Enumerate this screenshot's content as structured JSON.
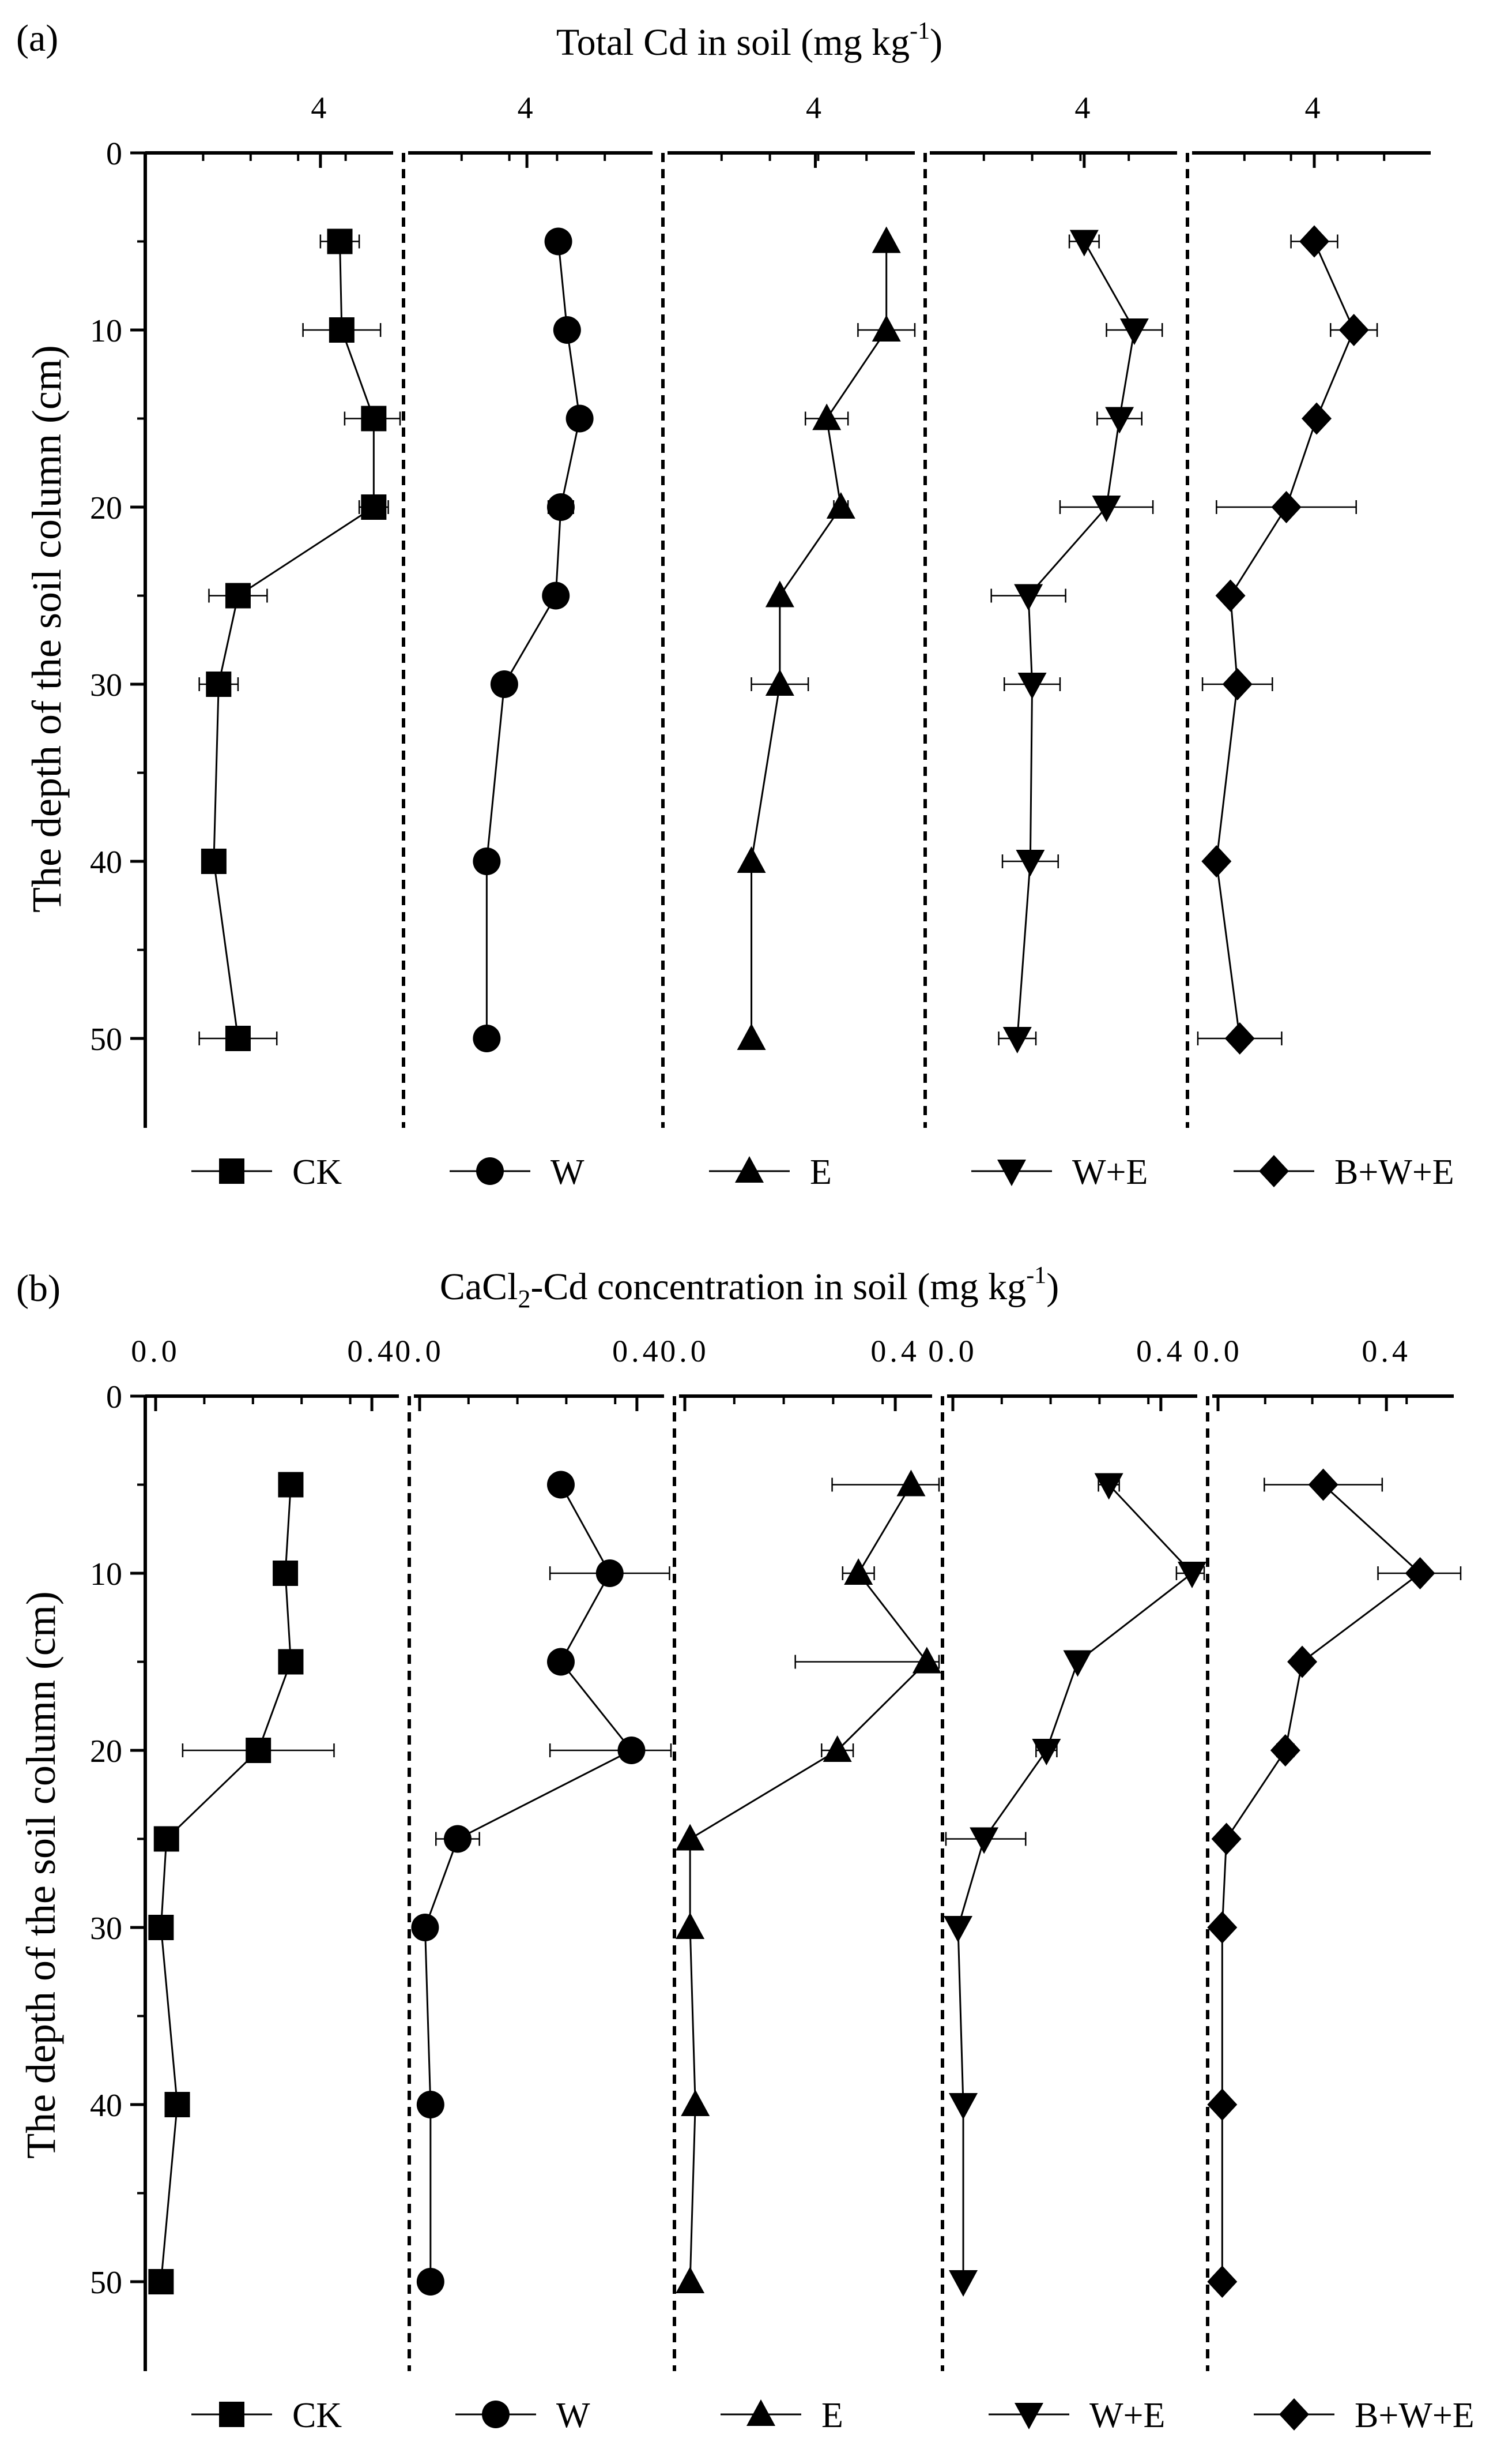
{
  "panel_a": {
    "label": "(a)",
    "title_main": "Total Cd in soil (mg kg",
    "title_sup": "-1",
    "title_end": ")",
    "ylabel": "The depth of the soil column (cm)"
  },
  "panel_b": {
    "label": "(b)",
    "title_pre": "CaCl",
    "title_sub": "2",
    "title_mid": "-Cd concentration in soil (mg kg",
    "title_sup": "-1",
    "title_end": ")",
    "ylabel": "The depth of the soil column (cm)"
  },
  "depth_ticks": [
    "0",
    "10",
    "20",
    "30",
    "40",
    "50"
  ],
  "colors": {
    "line": "#000000",
    "marker": "#000000",
    "background": "#ffffff"
  },
  "chart_data": [
    {
      "type": "line",
      "panel": "a",
      "title": "Total Cd in soil (mg kg-1)",
      "xlabel": "Total Cd in soil (mg kg-1)",
      "ylabel": "The depth of the soil column (cm)",
      "ylim": [
        55,
        0
      ],
      "y_ticks": [
        0,
        10,
        20,
        30,
        40,
        50
      ],
      "depths": [
        5,
        10,
        15,
        20,
        25,
        30,
        40,
        50
      ],
      "series": [
        {
          "name": "CK",
          "marker": "square",
          "x_tick_labels": [
            "4"
          ],
          "xlim": [
            2.3,
            4.75
          ],
          "values": [
            4.2,
            4.22,
            4.55,
            4.55,
            3.15,
            2.95,
            2.9,
            3.15
          ],
          "errors": [
            0.2,
            0.4,
            0.3,
            0.15,
            0.3,
            0.2,
            0,
            0.4
          ]
        },
        {
          "name": "W",
          "marker": "circle",
          "x_tick_labels": [
            "4"
          ],
          "xlim": [
            3.1,
            5.0
          ],
          "values": [
            4.25,
            4.32,
            4.42,
            4.27,
            4.23,
            3.82,
            3.68,
            3.68
          ],
          "errors": [
            0.03,
            0.06,
            0.08,
            0.1,
            0,
            0.05,
            0,
            0
          ]
        },
        {
          "name": "E",
          "marker": "triangle-up",
          "x_tick_labels": [
            "4"
          ],
          "xlim": [
            3.0,
            4.7
          ],
          "values": [
            4.5,
            4.5,
            4.08,
            4.18,
            3.75,
            3.75,
            3.55,
            3.55
          ],
          "errors": [
            0,
            0.2,
            0.15,
            0.05,
            0,
            0.2,
            0,
            0
          ]
        },
        {
          "name": "W+E",
          "marker": "triangle-down",
          "x_tick_labels": [
            "4"
          ],
          "xlim": [
            3.2,
            4.5
          ],
          "values": [
            4.0,
            4.27,
            4.19,
            4.12,
            3.7,
            3.72,
            3.71,
            3.64
          ],
          "errors": [
            0.08,
            0.15,
            0.12,
            0.25,
            0.2,
            0.15,
            0.15,
            0.1
          ]
        },
        {
          "name": "B+W+E",
          "marker": "diamond",
          "x_tick_labels": [
            "4"
          ],
          "xlim": [
            3.5,
            4.5
          ],
          "values": [
            4.0,
            4.17,
            4.01,
            3.88,
            3.64,
            3.67,
            3.58,
            3.68
          ],
          "errors": [
            0.1,
            0.1,
            0,
            0.3,
            0,
            0.15,
            0,
            0.18
          ]
        }
      ]
    },
    {
      "type": "line",
      "panel": "b",
      "title": "CaCl2-Cd concentration in soil (mg kg-1)",
      "xlabel": "CaCl2-Cd concentration in soil (mg kg-1)",
      "ylabel": "The depth of the soil column (cm)",
      "ylim": [
        55,
        0
      ],
      "y_ticks": [
        0,
        10,
        20,
        30,
        40,
        50
      ],
      "depths": [
        5,
        10,
        15,
        20,
        25,
        30,
        40,
        50
      ],
      "series": [
        {
          "name": "CK",
          "marker": "square",
          "x_tick_labels": [
            "0.0",
            "0.4"
          ],
          "x_ticks": [
            0.0,
            0.4
          ],
          "xlim": [
            0.0,
            0.45
          ],
          "values": [
            0.25,
            0.24,
            0.25,
            0.19,
            0.02,
            0.01,
            0.04,
            0.01
          ],
          "errors": [
            0,
            0,
            0,
            0.14,
            0,
            0,
            0.01,
            0
          ]
        },
        {
          "name": "W",
          "marker": "circle",
          "x_tick_labels": [
            "0.0",
            "0.4"
          ],
          "x_ticks": [
            0.0,
            0.4
          ],
          "xlim": [
            0.0,
            0.45
          ],
          "values": [
            0.26,
            0.35,
            0.26,
            0.39,
            0.07,
            0.01,
            0.02,
            0.02
          ],
          "errors": [
            0.02,
            0.11,
            0.02,
            0.15,
            0.04,
            0,
            0,
            0
          ]
        },
        {
          "name": "E",
          "marker": "triangle-up",
          "x_tick_labels": [
            "0.0",
            "0.4"
          ],
          "x_ticks": [
            0.0,
            0.4
          ],
          "xlim": [
            0.0,
            0.47
          ],
          "values": [
            0.43,
            0.33,
            0.46,
            0.29,
            0.01,
            0.01,
            0.02,
            0.01
          ],
          "errors": [
            0.15,
            0.03,
            0.25,
            0.03,
            0,
            0,
            0,
            0
          ]
        },
        {
          "name": "W+E",
          "marker": "triangle-down",
          "x_tick_labels": [
            "0.0",
            "0.4"
          ],
          "x_ticks": [
            0.0,
            0.4
          ],
          "xlim": [
            0.0,
            0.47
          ],
          "values": [
            0.3,
            0.46,
            0.24,
            0.18,
            0.06,
            0.01,
            0.02,
            0.02
          ],
          "errors": [
            0.02,
            0.03,
            0,
            0.02,
            0.08,
            0,
            0,
            0
          ]
        },
        {
          "name": "B+W+E",
          "marker": "diamond",
          "x_tick_labels": [
            "0.0",
            "0.4"
          ],
          "x_ticks": [
            0.0,
            0.4
          ],
          "xlim": [
            0.0,
            0.56
          ],
          "values": [
            0.25,
            0.48,
            0.2,
            0.16,
            0.02,
            0.01,
            0.01,
            0.01
          ],
          "errors": [
            0.14,
            0.1,
            0,
            0.02,
            0,
            0,
            0,
            0
          ]
        }
      ]
    }
  ]
}
